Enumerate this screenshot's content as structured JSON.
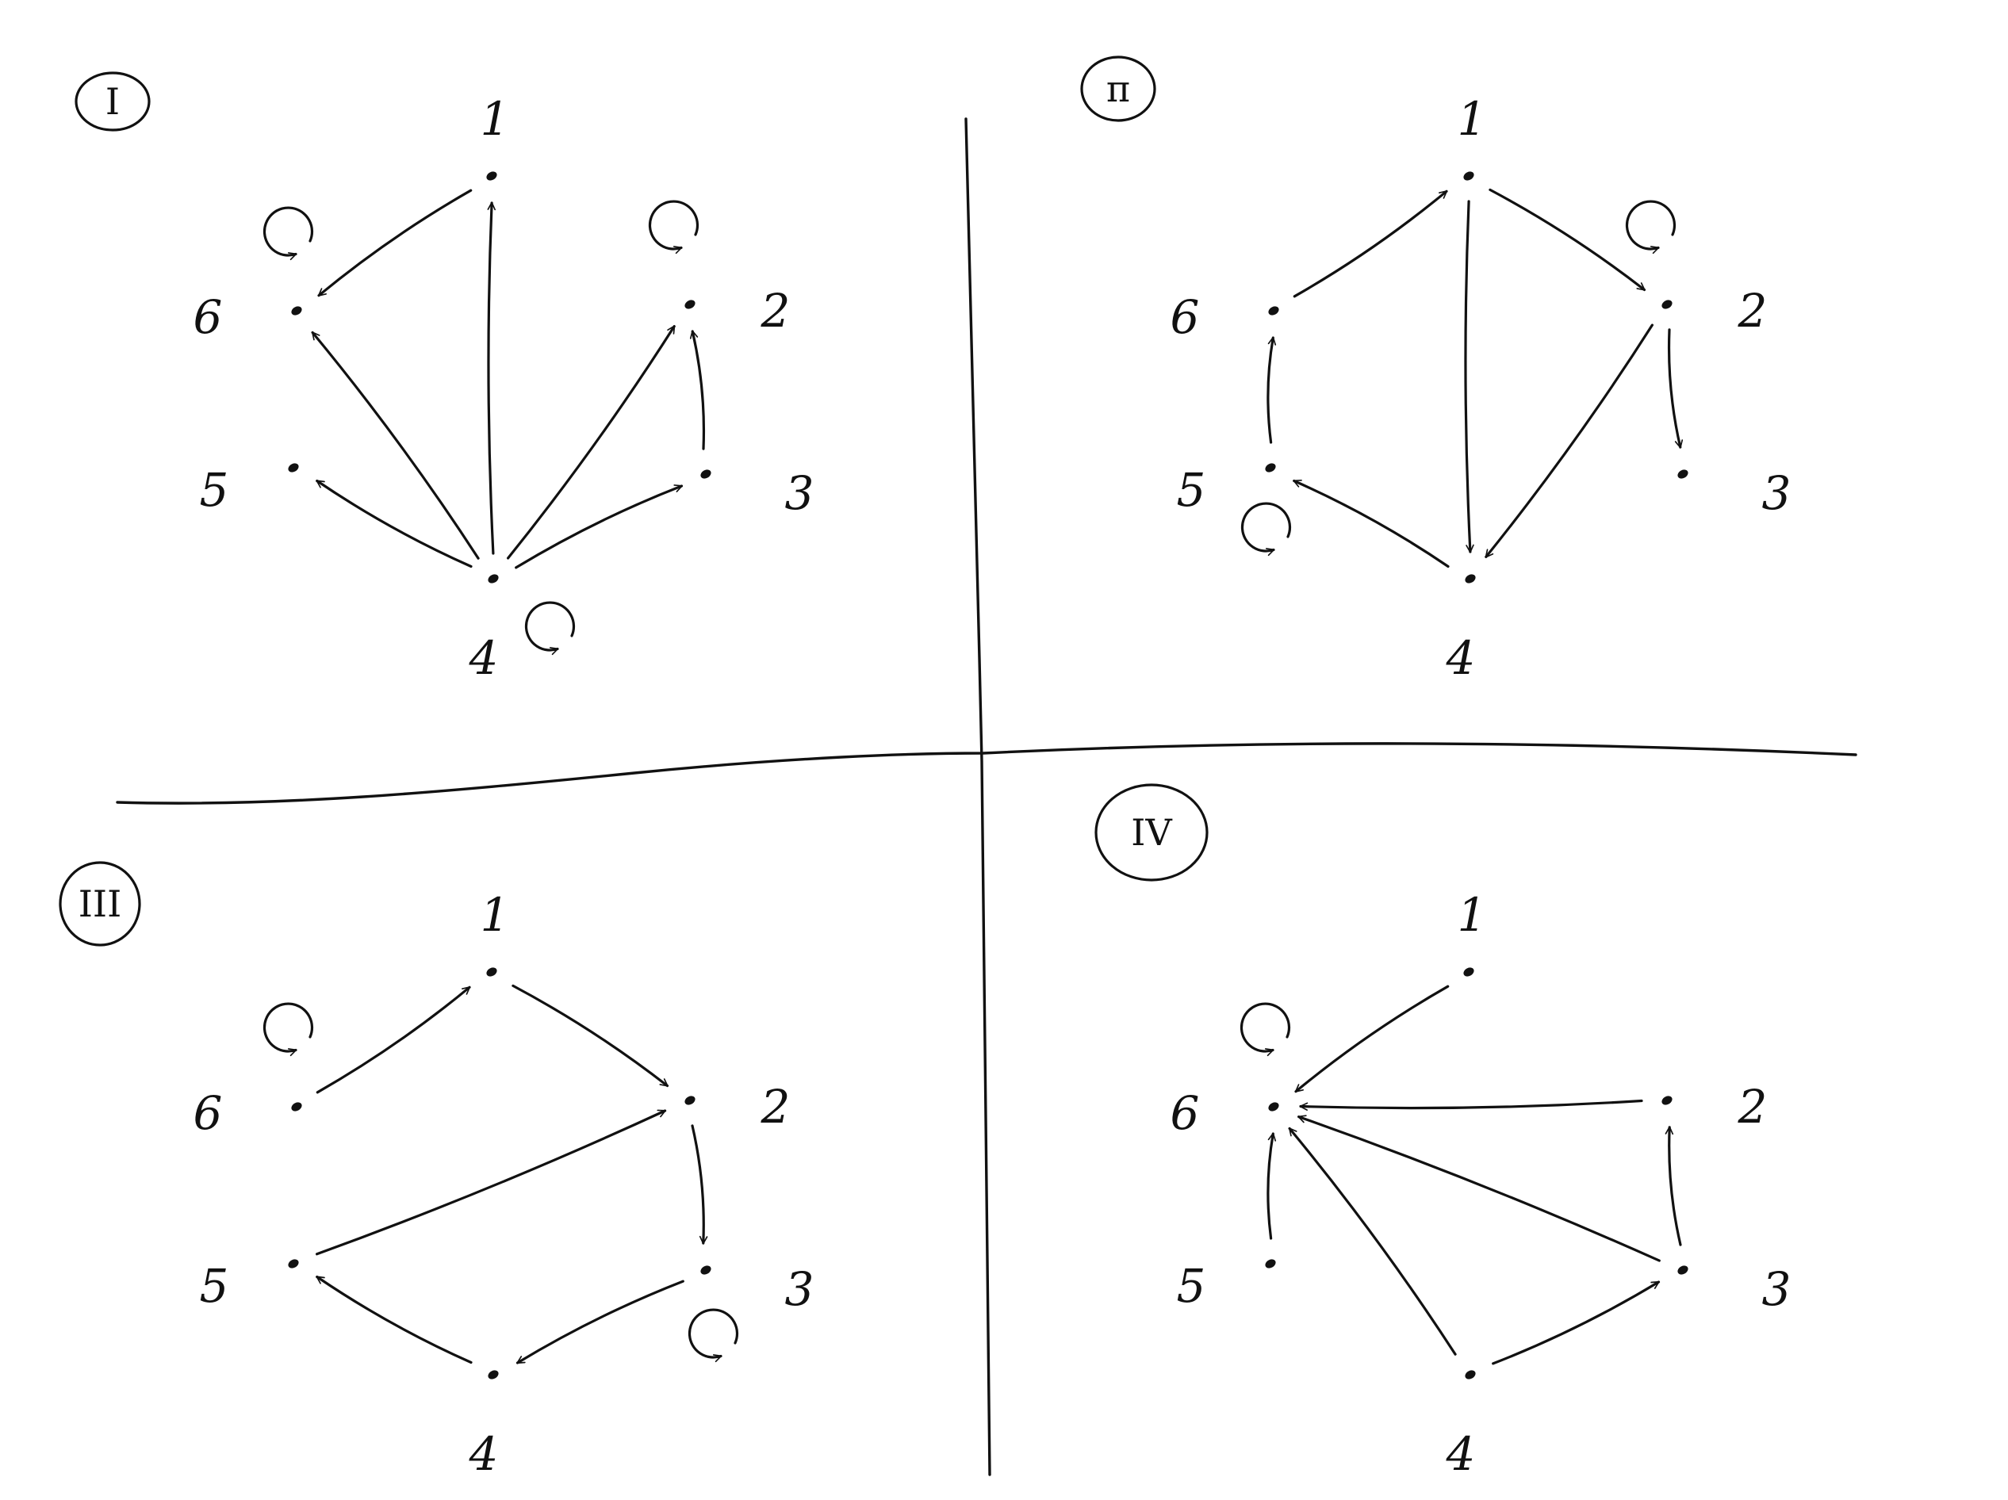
{
  "colors": {
    "ink": "#111111",
    "background": "#ffffff"
  },
  "panels": [
    {
      "id": "panel-1",
      "label": "I",
      "nodes": [
        {
          "id": "1",
          "label": "1"
        },
        {
          "id": "2",
          "label": "2"
        },
        {
          "id": "3",
          "label": "3"
        },
        {
          "id": "4",
          "label": "4"
        },
        {
          "id": "5",
          "label": "5"
        },
        {
          "id": "6",
          "label": "6"
        }
      ],
      "edges": [
        {
          "from": "1",
          "to": "6"
        },
        {
          "from": "4",
          "to": "1"
        },
        {
          "from": "4",
          "to": "6"
        },
        {
          "from": "4",
          "to": "5"
        },
        {
          "from": "4",
          "to": "2"
        },
        {
          "from": "4",
          "to": "3"
        },
        {
          "from": "3",
          "to": "2"
        }
      ],
      "self_loops": [
        "6",
        "2",
        "4"
      ]
    },
    {
      "id": "panel-2",
      "label": "π",
      "nodes": [
        {
          "id": "1",
          "label": "1"
        },
        {
          "id": "2",
          "label": "2"
        },
        {
          "id": "3",
          "label": "3"
        },
        {
          "id": "4",
          "label": "4"
        },
        {
          "id": "5",
          "label": "5"
        },
        {
          "id": "6",
          "label": "6"
        }
      ],
      "edges": [
        {
          "from": "6",
          "to": "1"
        },
        {
          "from": "1",
          "to": "2"
        },
        {
          "from": "1",
          "to": "4"
        },
        {
          "from": "2",
          "to": "4"
        },
        {
          "from": "2",
          "to": "3"
        },
        {
          "from": "5",
          "to": "6"
        },
        {
          "from": "4",
          "to": "5"
        }
      ],
      "self_loops": [
        "2",
        "5"
      ]
    },
    {
      "id": "panel-3",
      "label": "III",
      "nodes": [
        {
          "id": "1",
          "label": "1"
        },
        {
          "id": "2",
          "label": "2"
        },
        {
          "id": "3",
          "label": "3"
        },
        {
          "id": "4",
          "label": "4"
        },
        {
          "id": "5",
          "label": "5"
        },
        {
          "id": "6",
          "label": "6"
        }
      ],
      "edges": [
        {
          "from": "6",
          "to": "1"
        },
        {
          "from": "1",
          "to": "2"
        },
        {
          "from": "5",
          "to": "2"
        },
        {
          "from": "2",
          "to": "3"
        },
        {
          "from": "3",
          "to": "4"
        },
        {
          "from": "4",
          "to": "5"
        }
      ],
      "self_loops": [
        "6",
        "3"
      ]
    },
    {
      "id": "panel-4",
      "label": "IV",
      "nodes": [
        {
          "id": "1",
          "label": "1"
        },
        {
          "id": "2",
          "label": "2"
        },
        {
          "id": "3",
          "label": "3"
        },
        {
          "id": "4",
          "label": "4"
        },
        {
          "id": "5",
          "label": "5"
        },
        {
          "id": "6",
          "label": "6"
        }
      ],
      "edges": [
        {
          "from": "1",
          "to": "6"
        },
        {
          "from": "2",
          "to": "6"
        },
        {
          "from": "3",
          "to": "6"
        },
        {
          "from": "5",
          "to": "6"
        },
        {
          "from": "4",
          "to": "6"
        },
        {
          "from": "3",
          "to": "2"
        },
        {
          "from": "4",
          "to": "3"
        }
      ],
      "self_loops": [
        "6"
      ]
    }
  ]
}
